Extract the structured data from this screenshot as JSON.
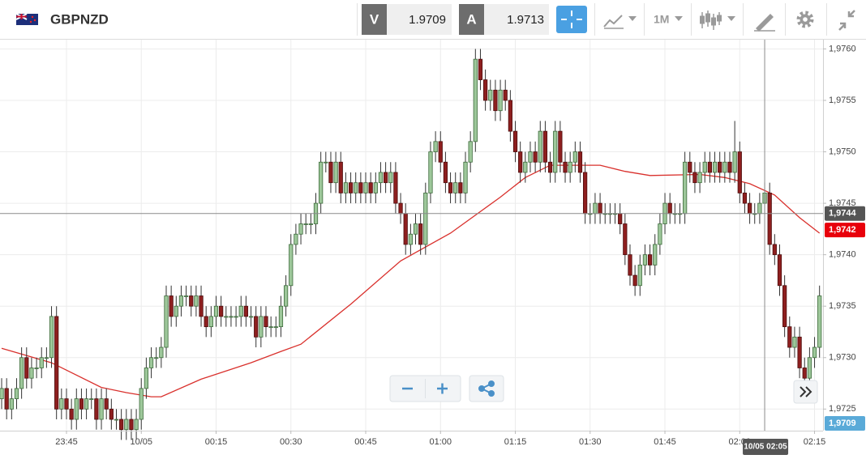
{
  "toolbar": {
    "symbol": "GBPNZD",
    "bid_label": "V",
    "bid": 1.9709,
    "ask_label": "A",
    "ask": 1.9713,
    "timeframe": "1M"
  },
  "chart_data": {
    "type": "candlestick",
    "open": [
      1.9726,
      1.9727,
      1.9725,
      1.9726,
      1.9727,
      1.973,
      1.9728,
      1.9729,
      1.9729,
      1.973,
      1.973,
      1.9734,
      1.9725,
      1.9726,
      1.9725,
      1.9724,
      1.9726,
      1.9725,
      1.9726,
      1.9726,
      1.9724,
      1.9726,
      1.9725,
      1.9724,
      1.9724,
      1.9723,
      1.9724,
      1.9723,
      1.9724,
      1.9727,
      1.9729,
      1.973,
      1.973,
      1.9731,
      1.9736,
      1.9734,
      1.9735,
      1.9736,
      1.9736,
      1.9735,
      1.9736,
      1.9734,
      1.9733,
      1.9734,
      1.9735,
      1.9734,
      1.9734,
      1.9734,
      1.9734,
      1.9735,
      1.9734,
      1.9734,
      1.9732,
      1.9734,
      1.9733,
      1.9733,
      1.9733,
      1.9735,
      1.9737,
      1.9741,
      1.9742,
      1.9743,
      1.9743,
      1.9743,
      1.9745,
      1.9749,
      1.9749,
      1.9747,
      1.9749,
      1.9746,
      1.9747,
      1.9746,
      1.9747,
      1.9746,
      1.9747,
      1.9746,
      1.9747,
      1.9748,
      1.9747,
      1.9748,
      1.9745,
      1.9744,
      1.9741,
      1.9742,
      1.9743,
      1.9741,
      1.9746,
      1.975,
      1.9751,
      1.9749,
      1.9747,
      1.9746,
      1.9747,
      1.9746,
      1.9749,
      1.9751,
      1.9759,
      1.9757,
      1.9755,
      1.9756,
      1.9754,
      1.9756,
      1.9755,
      1.9752,
      1.975,
      1.9748,
      1.9749,
      1.975,
      1.9749,
      1.9752,
      1.9749,
      1.9748,
      1.9752,
      1.9749,
      1.9748,
      1.9749,
      1.975,
      1.9748,
      1.9744,
      1.9744,
      1.9745,
      1.9744,
      1.9744,
      1.9744,
      1.9744,
      1.9743,
      1.974,
      1.9738,
      1.9737,
      1.9739,
      1.974,
      1.9739,
      1.9741,
      1.9743,
      1.9745,
      1.9744,
      1.9744,
      1.9744,
      1.9749,
      1.9748,
      1.9747,
      1.9748,
      1.9749,
      1.9748,
      1.9749,
      1.9748,
      1.9749,
      1.9748,
      1.975,
      1.9746,
      1.9745,
      1.9744,
      1.9744,
      1.9745,
      1.9746,
      1.9741,
      1.974,
      1.9737,
      1.9733,
      1.9731,
      1.9732,
      1.9729,
      1.9728,
      1.973,
      1.9731
    ],
    "high": [
      1.9728,
      1.9728,
      1.9727,
      1.9728,
      1.9731,
      1.9731,
      1.973,
      1.973,
      1.9731,
      1.9731,
      1.9735,
      1.9735,
      1.9727,
      1.9727,
      1.9726,
      1.9727,
      1.9727,
      1.9727,
      1.9727,
      1.9727,
      1.9727,
      1.9727,
      1.9726,
      1.9725,
      1.9725,
      1.9725,
      1.9725,
      1.9725,
      1.9728,
      1.973,
      1.9731,
      1.9731,
      1.9732,
      1.9737,
      1.9737,
      1.9736,
      1.9737,
      1.9737,
      1.9737,
      1.9737,
      1.9737,
      1.9735,
      1.9735,
      1.9736,
      1.9736,
      1.9735,
      1.9735,
      1.9735,
      1.9736,
      1.9736,
      1.9735,
      1.9735,
      1.9735,
      1.9735,
      1.9734,
      1.9734,
      1.9736,
      1.9738,
      1.9742,
      1.9743,
      1.9744,
      1.9744,
      1.9744,
      1.9746,
      1.975,
      1.975,
      1.975,
      1.975,
      1.975,
      1.9748,
      1.9748,
      1.9748,
      1.9748,
      1.9748,
      1.9748,
      1.9748,
      1.9749,
      1.9749,
      1.9749,
      1.9749,
      1.9746,
      1.9745,
      1.9743,
      1.9744,
      1.9744,
      1.9747,
      1.9751,
      1.9752,
      1.9752,
      1.975,
      1.9748,
      1.9748,
      1.9748,
      1.975,
      1.9752,
      1.976,
      1.976,
      1.9758,
      1.9757,
      1.9757,
      1.9757,
      1.9757,
      1.9756,
      1.9753,
      1.9751,
      1.975,
      1.9751,
      1.9751,
      1.9753,
      1.9753,
      1.975,
      1.9753,
      1.9753,
      1.975,
      1.975,
      1.9751,
      1.9751,
      1.9749,
      1.9745,
      1.9746,
      1.9746,
      1.9745,
      1.9745,
      1.9745,
      1.9745,
      1.9744,
      1.9741,
      1.9739,
      1.974,
      1.9741,
      1.9741,
      1.9742,
      1.9744,
      1.9746,
      1.9746,
      1.9745,
      1.9745,
      1.975,
      1.975,
      1.9749,
      1.9749,
      1.975,
      1.975,
      1.975,
      1.975,
      1.975,
      1.975,
      1.9753,
      1.9751,
      1.9747,
      1.9746,
      1.9745,
      1.9746,
      1.9747,
      1.9747,
      1.9742,
      1.9741,
      1.9738,
      1.9734,
      1.9733,
      1.9733,
      1.973,
      1.9731,
      1.9732,
      1.9737
    ],
    "low": [
      1.9725,
      1.9724,
      1.9724,
      1.9725,
      1.9726,
      1.9727,
      1.9727,
      1.9728,
      1.9728,
      1.9729,
      1.9729,
      1.9724,
      1.9724,
      1.9724,
      1.9723,
      1.9723,
      1.9724,
      1.9724,
      1.9725,
      1.9723,
      1.9723,
      1.9724,
      1.9723,
      1.9723,
      1.9722,
      1.9722,
      1.9722,
      1.9722,
      1.9723,
      1.9726,
      1.9728,
      1.9729,
      1.9729,
      1.973,
      1.9733,
      1.9733,
      1.9734,
      1.9735,
      1.9734,
      1.9734,
      1.9733,
      1.9732,
      1.9732,
      1.9733,
      1.9733,
      1.9733,
      1.9733,
      1.9733,
      1.9733,
      1.9733,
      1.9733,
      1.9731,
      1.9731,
      1.9732,
      1.9732,
      1.9732,
      1.9732,
      1.9734,
      1.9736,
      1.974,
      1.9741,
      1.9742,
      1.9742,
      1.9742,
      1.9744,
      1.9748,
      1.9746,
      1.9746,
      1.9745,
      1.9745,
      1.9745,
      1.9745,
      1.9745,
      1.9745,
      1.9745,
      1.9745,
      1.9746,
      1.9746,
      1.9746,
      1.9744,
      1.9743,
      1.974,
      1.974,
      1.9741,
      1.974,
      1.974,
      1.9745,
      1.9749,
      1.9748,
      1.9746,
      1.9745,
      1.9745,
      1.9745,
      1.9745,
      1.9748,
      1.975,
      1.9756,
      1.9754,
      1.9754,
      1.9753,
      1.9753,
      1.9754,
      1.9751,
      1.9749,
      1.9747,
      1.9747,
      1.9748,
      1.9748,
      1.9748,
      1.9748,
      1.9747,
      1.9747,
      1.9748,
      1.9747,
      1.9747,
      1.9748,
      1.9747,
      1.9743,
      1.9743,
      1.9743,
      1.9743,
      1.9743,
      1.9743,
      1.9743,
      1.9742,
      1.9739,
      1.9737,
      1.9736,
      1.9736,
      1.9738,
      1.9738,
      1.9738,
      1.974,
      1.9742,
      1.9743,
      1.9743,
      1.9743,
      1.9743,
      1.9747,
      1.9746,
      1.9746,
      1.9747,
      1.9747,
      1.9747,
      1.9747,
      1.9747,
      1.9747,
      1.9747,
      1.9745,
      1.9744,
      1.9743,
      1.9743,
      1.9743,
      1.9744,
      1.974,
      1.9739,
      1.9736,
      1.9732,
      1.973,
      1.973,
      1.9728,
      1.9727,
      1.9727,
      1.9729,
      1.973
    ],
    "close": [
      1.9727,
      1.9725,
      1.9726,
      1.9727,
      1.973,
      1.9728,
      1.9729,
      1.9729,
      1.973,
      1.973,
      1.9734,
      1.9725,
      1.9726,
      1.9725,
      1.9724,
      1.9726,
      1.9725,
      1.9726,
      1.9726,
      1.9724,
      1.9726,
      1.9725,
      1.9724,
      1.9724,
      1.9723,
      1.9724,
      1.9723,
      1.9724,
      1.9727,
      1.9729,
      1.973,
      1.973,
      1.9731,
      1.9736,
      1.9734,
      1.9735,
      1.9736,
      1.9736,
      1.9735,
      1.9736,
      1.9734,
      1.9733,
      1.9734,
      1.9735,
      1.9734,
      1.9734,
      1.9734,
      1.9734,
      1.9735,
      1.9734,
      1.9734,
      1.9732,
      1.9734,
      1.9733,
      1.9733,
      1.9733,
      1.9735,
      1.9737,
      1.9741,
      1.9742,
      1.9743,
      1.9743,
      1.9743,
      1.9745,
      1.9749,
      1.9749,
      1.9747,
      1.9749,
      1.9746,
      1.9747,
      1.9746,
      1.9747,
      1.9746,
      1.9747,
      1.9746,
      1.9747,
      1.9748,
      1.9747,
      1.9748,
      1.9745,
      1.9744,
      1.9741,
      1.9742,
      1.9743,
      1.9741,
      1.9746,
      1.975,
      1.9751,
      1.9749,
      1.9747,
      1.9746,
      1.9747,
      1.9746,
      1.9749,
      1.9751,
      1.9759,
      1.9757,
      1.9755,
      1.9756,
      1.9754,
      1.9756,
      1.9755,
      1.9752,
      1.975,
      1.9748,
      1.9749,
      1.975,
      1.9749,
      1.9752,
      1.9749,
      1.9748,
      1.9752,
      1.9749,
      1.9748,
      1.9749,
      1.975,
      1.9748,
      1.9744,
      1.9744,
      1.9745,
      1.9744,
      1.9744,
      1.9744,
      1.9744,
      1.9743,
      1.974,
      1.9738,
      1.9737,
      1.9739,
      1.974,
      1.9739,
      1.9741,
      1.9743,
      1.9745,
      1.9744,
      1.9744,
      1.9744,
      1.9749,
      1.9748,
      1.9747,
      1.9748,
      1.9749,
      1.9748,
      1.9749,
      1.9748,
      1.9749,
      1.9748,
      1.975,
      1.9746,
      1.9745,
      1.9744,
      1.9744,
      1.9745,
      1.9746,
      1.9741,
      1.974,
      1.9737,
      1.9733,
      1.9731,
      1.9732,
      1.9729,
      1.9728,
      1.973,
      1.9731,
      1.9736
    ],
    "up_color": "#9dc79a",
    "down_color": "#8e1f1f",
    "ma": {
      "x": [
        0,
        10,
        20,
        25,
        30,
        32,
        40,
        50,
        56,
        60,
        70,
        80,
        90,
        100,
        105,
        110,
        120,
        125,
        130,
        140,
        145,
        150,
        155,
        160,
        164
      ],
      "values": [
        1.97309,
        1.97295,
        1.97271,
        1.97266,
        1.97262,
        1.97262,
        1.97279,
        1.97295,
        1.97306,
        1.97313,
        1.97352,
        1.97394,
        1.97421,
        1.97456,
        1.97475,
        1.97487,
        1.97487,
        1.97481,
        1.97477,
        1.97478,
        1.97475,
        1.97469,
        1.97458,
        1.97436,
        1.97421
      ],
      "color": "#d9302c"
    },
    "xlim": [
      -0.33,
      164.7
    ],
    "ylim": [
      1.97229,
      1.97609
    ],
    "yticks": [
      {
        "value": 1.976,
        "label": "1,9760"
      },
      {
        "value": 1.9755,
        "label": "1,9755"
      },
      {
        "value": 1.975,
        "label": "1,9750"
      },
      {
        "value": 1.9745,
        "label": "1,9745"
      },
      {
        "value": 1.974,
        "label": "1,9740"
      },
      {
        "value": 1.9735,
        "label": "1,9735"
      },
      {
        "value": 1.973,
        "label": "1,9730"
      },
      {
        "value": 1.9725,
        "label": "1,9725"
      }
    ],
    "xticks": [
      {
        "value": 13,
        "label": "23:45"
      },
      {
        "value": 28,
        "label": "10/05"
      },
      {
        "value": 43,
        "label": "00:15"
      },
      {
        "value": 58,
        "label": "00:30"
      },
      {
        "value": 73,
        "label": "00:45"
      },
      {
        "value": 88,
        "label": "01:00"
      },
      {
        "value": 103,
        "label": "01:15"
      },
      {
        "value": 118,
        "label": "01:30"
      },
      {
        "value": 133,
        "label": "01:45"
      },
      {
        "value": 148,
        "label": "02:00"
      },
      {
        "value": 163,
        "label": "02:15"
      }
    ],
    "grid": true,
    "crosshair": {
      "price": {
        "value": 1.9744,
        "label": "1,9744"
      },
      "time": {
        "value": 153,
        "label": "10/05 02:05"
      }
    },
    "last_price": {
      "value": 1.97424,
      "label": "1,9742",
      "color": "#e8000b"
    },
    "bid_marker": {
      "value": 1.9709,
      "label": "1,9709",
      "color": "#5aaad8"
    }
  }
}
